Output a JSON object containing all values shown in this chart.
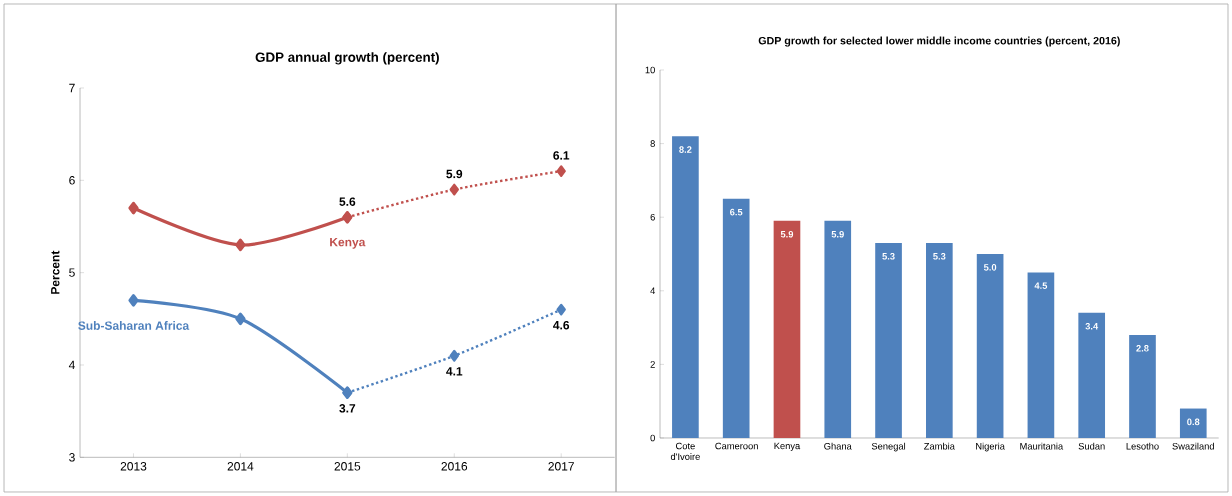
{
  "chart_data": [
    {
      "type": "line",
      "title": "GDP annual growth (percent)",
      "ylabel": "Percent",
      "categories": [
        "2013",
        "2014",
        "2015",
        "2016",
        "2017"
      ],
      "series": [
        {
          "name": "Sub-Saharan Africa",
          "color": "#4f81bd",
          "line_style": "solid",
          "values": [
            4.7,
            4.5,
            3.7,
            null,
            null
          ]
        },
        {
          "color": "#4f81bd",
          "line_style": "dotted",
          "values": [
            null,
            null,
            3.7,
            4.1,
            4.6
          ],
          "value_labels": [
            null,
            null,
            "3.7",
            "4.1",
            "4.6"
          ]
        },
        {
          "color": "#c0504d",
          "line_style": "solid",
          "values": [
            5.7,
            5.3,
            5.6,
            null,
            null
          ]
        },
        {
          "name": "Kenya",
          "color": "#c0504d",
          "line_style": "dotted",
          "values": [
            null,
            null,
            5.6,
            5.9,
            6.1
          ],
          "value_labels": [
            null,
            null,
            "5.6",
            "5.9",
            "6.1"
          ]
        }
      ],
      "ylim": [
        3,
        7
      ],
      "yticks": [
        3,
        4,
        5,
        6,
        7
      ],
      "marker": "diamond"
    },
    {
      "type": "bar",
      "title": "GDP growth for selected lower middle income countries (percent, 2016)",
      "categories": [
        "Cote d'Ivoire",
        "Cameroon",
        "Kenya",
        "Ghana",
        "Senegal",
        "Zambia",
        "Nigeria",
        "Mauritania",
        "Sudan",
        "Lesotho",
        "Swaziland"
      ],
      "values": [
        8.2,
        6.5,
        5.9,
        5.9,
        5.3,
        5.3,
        5.0,
        4.5,
        3.4,
        2.8,
        0.8
      ],
      "colors": [
        "#4f81bd",
        "#4f81bd",
        "#c0504d",
        "#4f81bd",
        "#4f81bd",
        "#4f81bd",
        "#4f81bd",
        "#4f81bd",
        "#4f81bd",
        "#4f81bd",
        "#4f81bd"
      ],
      "value_labels": [
        "8.2",
        "6.5",
        "5.9",
        "5.9",
        "5.3",
        "5.3",
        "5.0",
        "4.5",
        "3.4",
        "2.8",
        "0.8"
      ],
      "ylim": [
        0,
        10
      ],
      "yticks": [
        0,
        2,
        4,
        6,
        8,
        10
      ]
    }
  ]
}
